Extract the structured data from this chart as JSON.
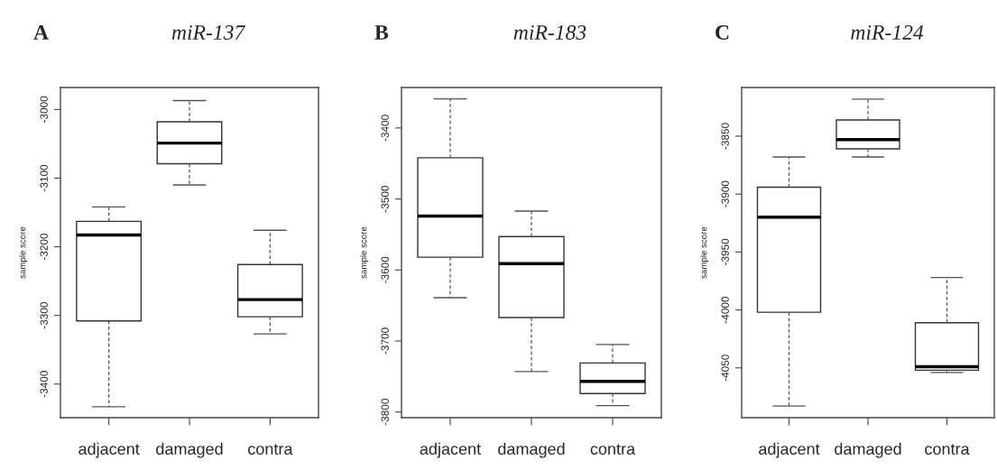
{
  "chart_data": [
    {
      "type": "box",
      "title": "miR-137",
      "annotations": [
        "A"
      ],
      "ylabel": "sample score",
      "categories": [
        "adjacent",
        "damaged",
        "contra"
      ],
      "ylim": [
        -3449,
        -2968
      ],
      "yticks": [
        -3400,
        -3300,
        -3200,
        -3100,
        -3000
      ],
      "grid": false,
      "boxes": [
        {
          "low": -3433,
          "q1": -3308,
          "median": -3183,
          "q3": -3163,
          "high": -3142
        },
        {
          "low": -3110,
          "q1": -3079,
          "median": -3049,
          "q3": -3018,
          "high": -2987
        },
        {
          "low": -3327,
          "q1": -3302,
          "median": -3277,
          "q3": -3226,
          "high": -3176
        }
      ]
    },
    {
      "type": "box",
      "title": "miR-183",
      "annotations": [
        "B"
      ],
      "ylabel": "sample score",
      "categories": [
        "adjacent",
        "damaged",
        "contra"
      ],
      "ylim": [
        -3808,
        -3343
      ],
      "yticks": [
        -3800,
        -3700,
        -3600,
        -3500,
        -3400
      ],
      "grid": false,
      "boxes": [
        {
          "low": -3639,
          "q1": -3582,
          "median": -3524,
          "q3": -3442,
          "high": -3359
        },
        {
          "low": -3743,
          "q1": -3667,
          "median": -3591,
          "q3": -3553,
          "high": -3517
        },
        {
          "low": -3791,
          "q1": -3774,
          "median": -3757,
          "q3": -3731,
          "high": -3705
        }
      ]
    },
    {
      "type": "box",
      "title": "miR-124",
      "annotations": [
        "C"
      ],
      "ylabel": "sample score",
      "categories": [
        "adjacent",
        "damaged",
        "contra"
      ],
      "ylim": [
        -4093,
        -3808
      ],
      "yticks": [
        -4050,
        -4000,
        -3950,
        -3900,
        -3850
      ],
      "grid": false,
      "boxes": [
        {
          "low": -4083,
          "q1": -4002,
          "median": -3920,
          "q3": -3894,
          "high": -3868
        },
        {
          "low": -3868,
          "q1": -3861,
          "median": -3853,
          "q3": -3836,
          "high": -3818
        },
        {
          "low": -4054,
          "q1": -4052,
          "median": -4049,
          "q3": -4011,
          "high": -3972
        }
      ]
    }
  ]
}
